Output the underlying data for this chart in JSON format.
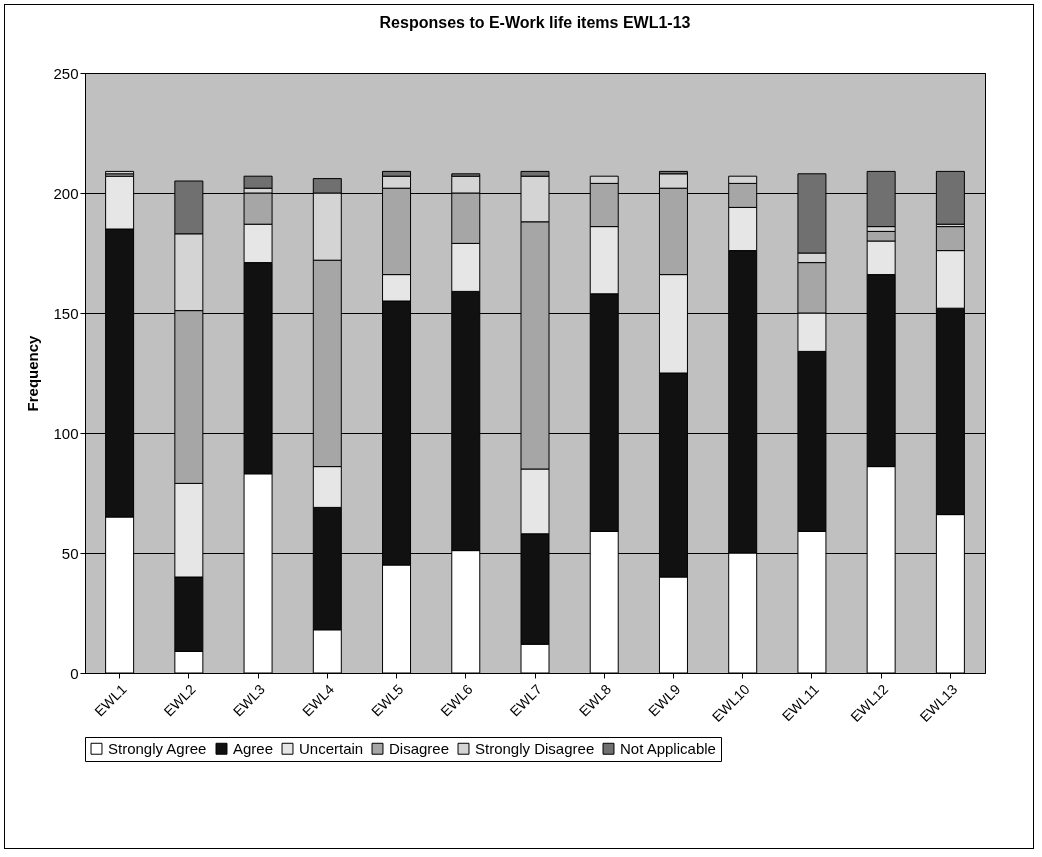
{
  "chart_data": {
    "type": "bar",
    "title": "Responses to E-Work life items EWL1-13",
    "ylabel": "Frequency",
    "categories": [
      "EWL1",
      "EWL2",
      "EWL3",
      "EWL4",
      "EWL5",
      "EWL6",
      "EWL7",
      "EWL8",
      "EWL9",
      "EWL10",
      "EWL11",
      "EWL12",
      "EWL13"
    ],
    "stacked": true,
    "ylim": [
      0,
      250
    ],
    "yticks": [
      0,
      50,
      100,
      150,
      200,
      250
    ],
    "grid": "y",
    "legend": "bottom",
    "series": [
      {
        "name": "Strongly Agree",
        "color": "#ffffff",
        "values": [
          65,
          9,
          83,
          18,
          45,
          51,
          12,
          59,
          40,
          50,
          59,
          86,
          66
        ]
      },
      {
        "name": "Agree",
        "color": "#111111",
        "values": [
          120,
          31,
          88,
          51,
          110,
          108,
          46,
          99,
          85,
          126,
          75,
          80,
          86
        ]
      },
      {
        "name": "Uncertain",
        "color": "#e6e6e6",
        "values": [
          22,
          39,
          16,
          17,
          11,
          20,
          27,
          28,
          41,
          18,
          16,
          14,
          24
        ]
      },
      {
        "name": "Disagree",
        "color": "#a6a6a6",
        "values": [
          1,
          72,
          13,
          86,
          36,
          21,
          103,
          18,
          36,
          10,
          21,
          4,
          10
        ]
      },
      {
        "name": "Strongly Disagree",
        "color": "#d4d4d4",
        "values": [
          1,
          32,
          2,
          28,
          5,
          7,
          19,
          3,
          6,
          3,
          4,
          2,
          1
        ]
      },
      {
        "name": "Not Applicable",
        "color": "#707070",
        "values": [
          0,
          22,
          5,
          6,
          2,
          1,
          2,
          0,
          1,
          0,
          33,
          23,
          22
        ]
      }
    ]
  }
}
